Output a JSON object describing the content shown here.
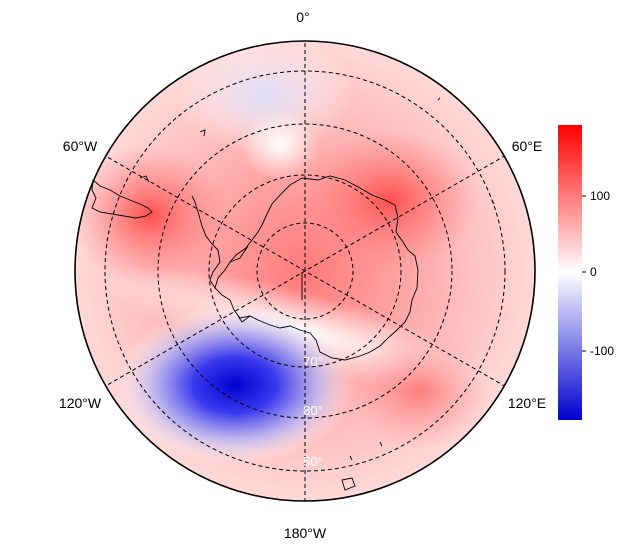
{
  "map": {
    "projection": "south-polar-stereographic",
    "longitude_labels": [
      "0°",
      "60°E",
      "120°E",
      "180°W",
      "120°W",
      "60°W"
    ],
    "latitude_labels": [
      "70°",
      "80°",
      "50°"
    ],
    "colors": {
      "positive": "#ff0000",
      "negative": "#0000cc",
      "neutral": "#ffffff",
      "graticule": "#000000",
      "coastline": "#000000"
    }
  },
  "colorbar": {
    "range": [
      -180,
      180
    ],
    "tick_labels": [
      "100",
      "0",
      "-100"
    ],
    "tick_values": [
      100,
      0,
      -100
    ]
  },
  "field_features": [
    {
      "description": "strong negative anomaly",
      "value": -180
    },
    {
      "description": "positive anomaly west",
      "value": 120
    },
    {
      "description": "positive anomaly east",
      "value": 110
    },
    {
      "description": "weak negative anomaly north",
      "value": -30
    }
  ]
}
